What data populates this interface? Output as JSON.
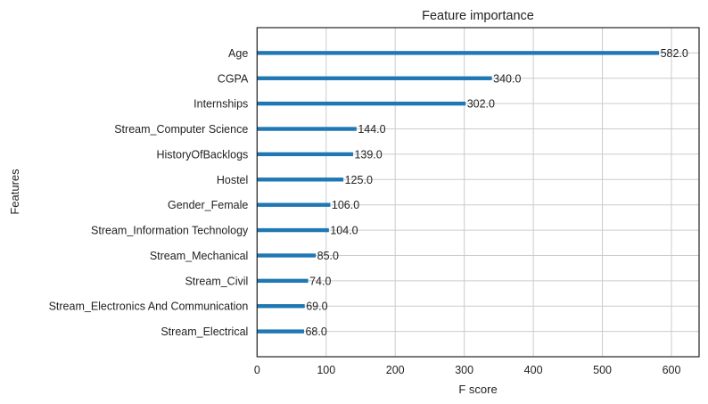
{
  "chart_data": {
    "type": "bar",
    "orientation": "horizontal",
    "title": "Feature importance",
    "xlabel": "F score",
    "ylabel": "Features",
    "xlim": [
      0,
      640
    ],
    "xticks": [
      0,
      100,
      200,
      300,
      400,
      500,
      600
    ],
    "xtick_labels": [
      "0",
      "100",
      "200",
      "300",
      "400",
      "500",
      "600"
    ],
    "grid": true,
    "bar_color": "#1f77b4",
    "categories": [
      "Age",
      "CGPA",
      "Internships",
      "Stream_Computer Science",
      "HistoryOfBacklogs",
      "Hostel",
      "Gender_Female",
      "Stream_Information Technology",
      "Stream_Mechanical",
      "Stream_Civil",
      "Stream_Electronics And Communication",
      "Stream_Electrical"
    ],
    "values": [
      582,
      340,
      302,
      144,
      139,
      125,
      106,
      104,
      85,
      74,
      69,
      68
    ],
    "value_labels": [
      "582.0",
      "340.0",
      "302.0",
      "144.0",
      "139.0",
      "125.0",
      "106.0",
      "104.0",
      "85.0",
      "74.0",
      "69.0",
      "68.0"
    ]
  }
}
